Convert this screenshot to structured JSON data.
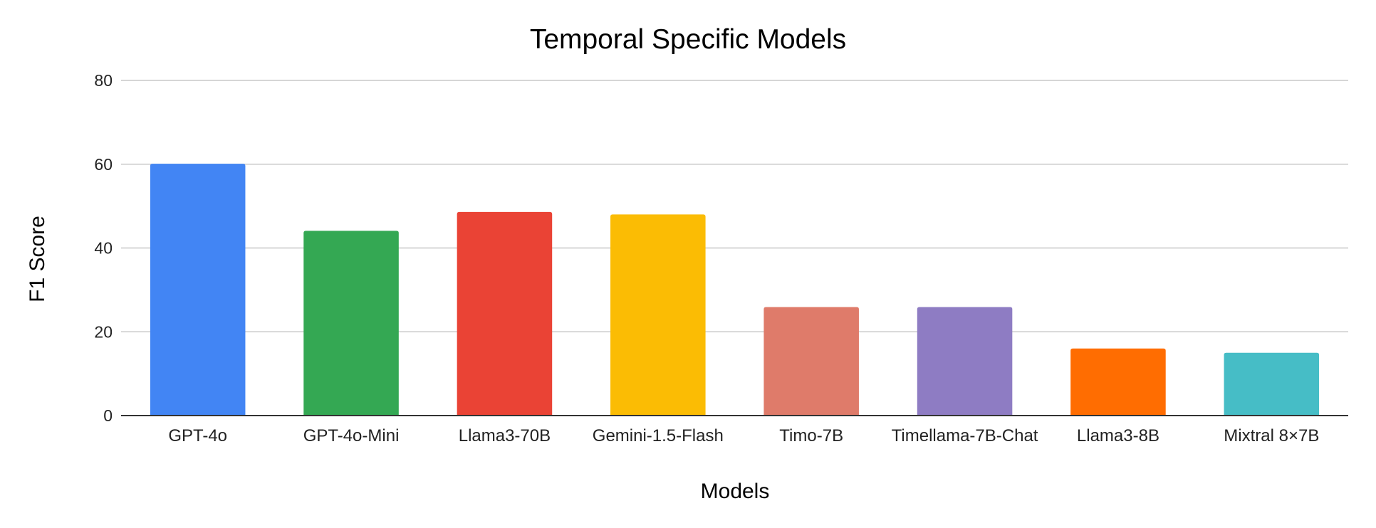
{
  "chart_data": {
    "type": "bar",
    "title": "Temporal Specific Models",
    "xlabel": "Models",
    "ylabel": "F1 Score",
    "ylim": [
      0,
      80
    ],
    "yticks": [
      0,
      20,
      40,
      60,
      80
    ],
    "grid": true,
    "legend": "none",
    "categories": [
      "GPT-4o",
      "GPT-4o-Mini",
      "Llama3-70B",
      "Gemini-1.5-Flash",
      "Timo-7B",
      "Timellama-7B-Chat",
      "Llama3-8B",
      "Mixtral 8×7B"
    ],
    "values": [
      60.1,
      44.1,
      48.6,
      48.0,
      25.9,
      25.9,
      16.0,
      15.0
    ],
    "colors": [
      "#4285f4",
      "#34a853",
      "#ea4335",
      "#fbbc04",
      "#df7b6a",
      "#8e7cc3",
      "#ff6d01",
      "#46bdc6"
    ]
  }
}
